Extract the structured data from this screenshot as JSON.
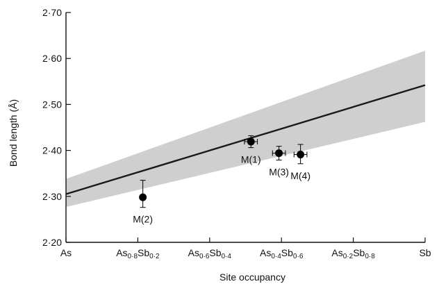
{
  "chart_data": {
    "type": "scatter",
    "xlabel": "Site occupancy",
    "ylabel": "Bond length (Å)",
    "xlim": [
      0,
      1
    ],
    "ylim": [
      2.2,
      2.7
    ],
    "x_ticks": [
      {
        "value": 0.0,
        "main": "As",
        "parts": [
          {
            "t": "As"
          }
        ]
      },
      {
        "value": 0.2,
        "main": "As0·8Sb0·2",
        "parts": [
          {
            "t": "As"
          },
          {
            "t": "0·8",
            "sub": true
          },
          {
            "t": "Sb"
          },
          {
            "t": "0·2",
            "sub": true
          }
        ]
      },
      {
        "value": 0.4,
        "main": "As0·6Sb0·4",
        "parts": [
          {
            "t": "As"
          },
          {
            "t": "0·6",
            "sub": true
          },
          {
            "t": "Sb"
          },
          {
            "t": "0·4",
            "sub": true
          }
        ]
      },
      {
        "value": 0.6,
        "main": "As0·4Sb0·6",
        "parts": [
          {
            "t": "As"
          },
          {
            "t": "0·4",
            "sub": true
          },
          {
            "t": "Sb"
          },
          {
            "t": "0·6",
            "sub": true
          }
        ]
      },
      {
        "value": 0.8,
        "main": "As0·2Sb0·8",
        "parts": [
          {
            "t": "As"
          },
          {
            "t": "0·2",
            "sub": true
          },
          {
            "t": "Sb"
          },
          {
            "t": "0·8",
            "sub": true
          }
        ]
      },
      {
        "value": 1.0,
        "main": "Sb",
        "parts": [
          {
            "t": "Sb"
          }
        ]
      }
    ],
    "y_ticks": [
      {
        "value": 2.2,
        "label": "2·20"
      },
      {
        "value": 2.3,
        "label": "2·30"
      },
      {
        "value": 2.4,
        "label": "2·40"
      },
      {
        "value": 2.5,
        "label": "2·50"
      },
      {
        "value": 2.6,
        "label": "2·60"
      },
      {
        "value": 2.7,
        "label": "2·70"
      }
    ],
    "trend_line": {
      "x": [
        0,
        1
      ],
      "y": [
        2.305,
        2.542
      ]
    },
    "band": {
      "x": [
        0,
        1
      ],
      "upper": [
        2.338,
        2.617
      ],
      "lower": [
        2.277,
        2.462
      ]
    },
    "points": [
      {
        "label": "M(2)",
        "x": 0.214,
        "y": 2.298,
        "xerr": 0,
        "yerr_low": 0.022,
        "yerr_high": 0.037,
        "label_pos": "below"
      },
      {
        "label": "M(1)",
        "x": 0.515,
        "y": 2.419,
        "xerr": 0.018,
        "yerr_low": 0.013,
        "yerr_high": 0.013,
        "label_pos": "below"
      },
      {
        "label": "M(3)",
        "x": 0.593,
        "y": 2.394,
        "xerr": 0.018,
        "yerr_low": 0.015,
        "yerr_high": 0.015,
        "label_pos": "below"
      },
      {
        "label": "M(4)",
        "x": 0.653,
        "y": 2.391,
        "xerr": 0.018,
        "yerr_low": 0.02,
        "yerr_high": 0.022,
        "label_pos": "below"
      }
    ],
    "colors": {
      "band": "#cfcfcf",
      "line": "#1a1a1a",
      "point": "#000000",
      "axis": "#111111"
    }
  }
}
